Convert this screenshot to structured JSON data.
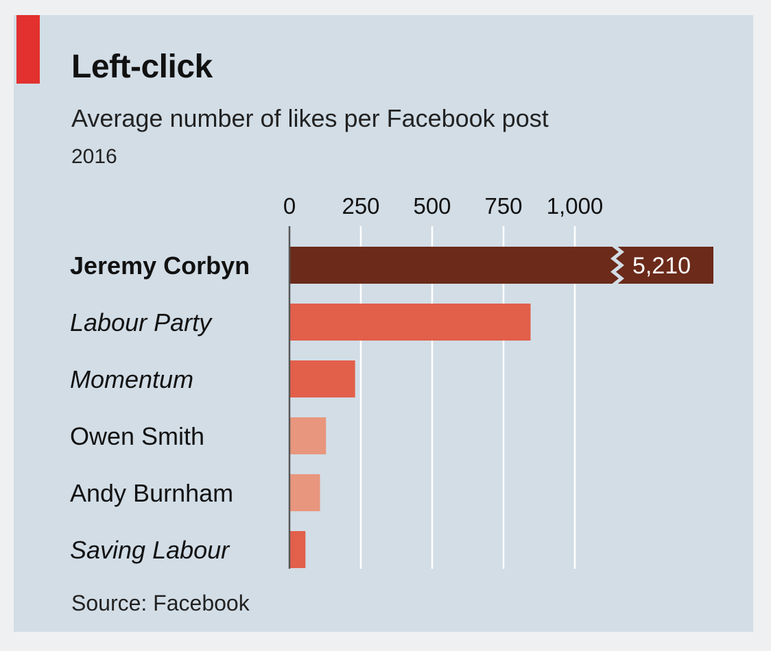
{
  "chart_data": {
    "type": "bar",
    "orientation": "horizontal",
    "title": "Left-click",
    "subtitle": "Average number of likes per Facebook post",
    "period": "2016",
    "source": "Source: Facebook",
    "xlim": [
      0,
      1000
    ],
    "ticks": [
      0,
      250,
      500,
      750,
      1000
    ],
    "tick_labels": [
      "0",
      "250",
      "500",
      "750",
      "1,000"
    ],
    "grid": true,
    "axis_break": true,
    "categories": [
      {
        "label": "Jeremy Corbyn",
        "value": 5210,
        "value_label": "5,210",
        "style": "bold",
        "color": "#6b2a1a",
        "broken": true
      },
      {
        "label": "Labour Party",
        "value": 845,
        "style": "italic",
        "color": "#e25f4a"
      },
      {
        "label": "Momentum",
        "value": 230,
        "style": "italic",
        "color": "#e25f4a"
      },
      {
        "label": "Owen Smith",
        "value": 128,
        "style": "normal",
        "color": "#e8967d"
      },
      {
        "label": "Andy Burnham",
        "value": 107,
        "style": "normal",
        "color": "#e8967d"
      },
      {
        "label": "Saving Labour",
        "value": 56,
        "style": "italic",
        "color": "#e25f4a"
      }
    ]
  }
}
